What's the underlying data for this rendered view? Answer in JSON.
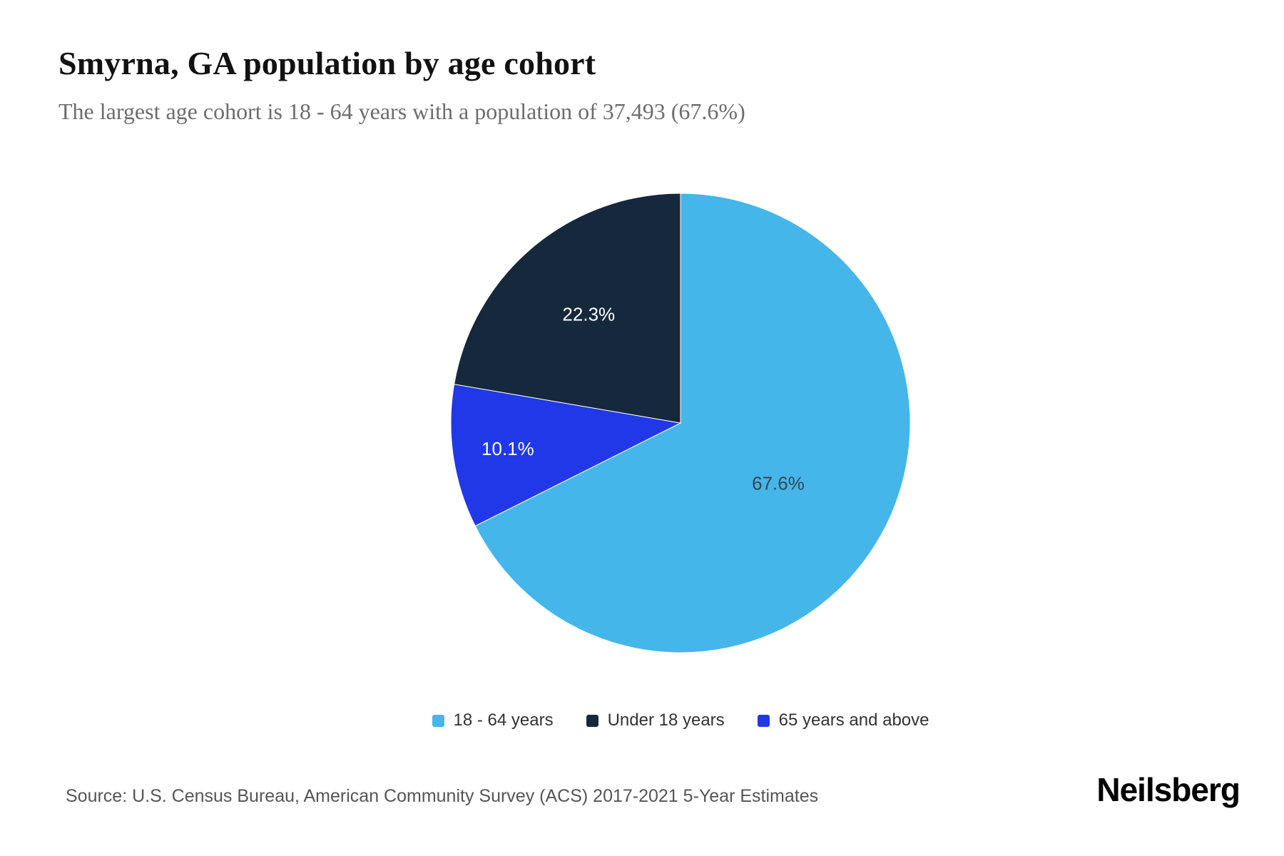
{
  "header": {
    "title": "Smyrna, GA population by age cohort",
    "subtitle": "The largest age cohort is 18 - 64 years with a population of 37,493 (67.6%)"
  },
  "chart_data": {
    "type": "pie",
    "title": "Smyrna, GA population by age cohort",
    "subtitle": "The largest age cohort is 18 - 64 years with a population of 37,493 (67.6%)",
    "unit": "percent",
    "direction": "clockwise",
    "start_angle_deg": 0,
    "legend_position": "bottom",
    "slices": [
      {
        "label": "18 - 64 years",
        "value": 67.6,
        "display": "67.6%",
        "color": "#45b6ea",
        "label_color": "#37474f"
      },
      {
        "label": "65 years and above",
        "value": 10.1,
        "display": "10.1%",
        "color": "#2138e8",
        "label_color": "#ffffff"
      },
      {
        "label": "Under 18 years",
        "value": 22.3,
        "display": "22.3%",
        "color": "#16283c",
        "label_color": "#ffffff"
      }
    ],
    "largest_cohort": {
      "label": "18 - 64 years",
      "population": "37,493",
      "percent": "67.6%"
    }
  },
  "legend": {
    "items": [
      {
        "label": "18 - 64 years",
        "color": "#45b6ea"
      },
      {
        "label": "Under 18 years",
        "color": "#16283c"
      },
      {
        "label": "65 years and above",
        "color": "#2138e8"
      }
    ]
  },
  "footer": {
    "source": "Source: U.S. Census Bureau, American Community Survey (ACS) 2017-2021 5-Year Estimates",
    "brand": "Neilsberg"
  }
}
